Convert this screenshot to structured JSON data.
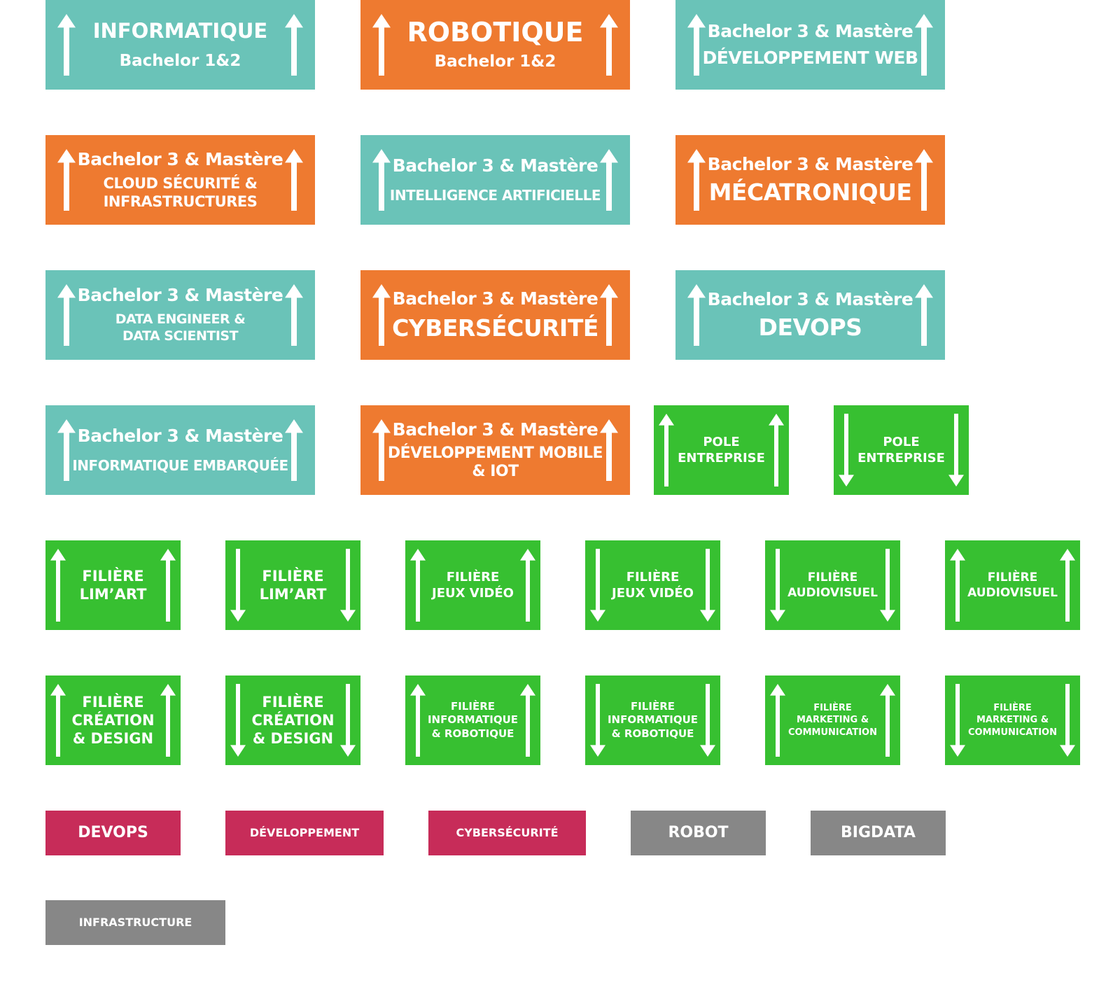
{
  "colors": {
    "teal": "#6ac3b8",
    "orange": "#ee7a30",
    "green": "#37c031",
    "crimson": "#c72c59",
    "grey": "#878787",
    "white": "#ffffff"
  },
  "icons": {
    "up": "arrow-up-icon",
    "down": "arrow-down-icon"
  },
  "signs": [
    {
      "color": "teal",
      "arrows": "up",
      "lines": [
        "INFORMATIQUE",
        "Bachelor 1&2"
      ]
    },
    {
      "color": "orange",
      "arrows": "up",
      "lines": [
        "ROBOTIQUE",
        "Bachelor 1&2"
      ]
    },
    {
      "color": "teal",
      "arrows": "up",
      "lines": [
        "Bachelor 3 & Mastère",
        "DÉVELOPPEMENT WEB"
      ]
    },
    {
      "color": "orange",
      "arrows": "up",
      "lines": [
        "Bachelor 3 & Mastère",
        "CLOUD SÉCURITÉ &",
        "INFRASTRUCTURES"
      ]
    },
    {
      "color": "teal",
      "arrows": "up",
      "lines": [
        "Bachelor 3 & Mastère",
        "INTELLIGENCE ARTIFICIELLE"
      ]
    },
    {
      "color": "orange",
      "arrows": "up",
      "lines": [
        "Bachelor 3 & Mastère",
        "MÉCATRONIQUE"
      ]
    },
    {
      "color": "teal",
      "arrows": "up",
      "lines": [
        "Bachelor 3 & Mastère",
        "DATA ENGINEER &",
        "DATA SCIENTIST"
      ]
    },
    {
      "color": "orange",
      "arrows": "up",
      "lines": [
        "Bachelor 3 & Mastère",
        "CYBERSÉCURITÉ"
      ]
    },
    {
      "color": "teal",
      "arrows": "up",
      "lines": [
        "Bachelor 3 & Mastère",
        "DEVOPS"
      ]
    },
    {
      "color": "teal",
      "arrows": "up",
      "lines": [
        "Bachelor 3 & Mastère",
        "INFORMATIQUE EMBARQUÉE"
      ]
    },
    {
      "color": "orange",
      "arrows": "up",
      "lines": [
        "Bachelor 3 & Mastère",
        "DÉVELOPPEMENT MOBILE",
        "& IOT"
      ]
    },
    {
      "color": "green",
      "arrows": "up",
      "lines": [
        "POLE",
        "ENTREPRISE"
      ]
    },
    {
      "color": "green",
      "arrows": "down",
      "lines": [
        "POLE",
        "ENTREPRISE"
      ]
    },
    {
      "color": "green",
      "arrows": "up",
      "lines": [
        "FILIÈRE",
        "LIM’ART"
      ]
    },
    {
      "color": "green",
      "arrows": "down",
      "lines": [
        "FILIÈRE",
        "LIM’ART"
      ]
    },
    {
      "color": "green",
      "arrows": "up",
      "lines": [
        "FILIÈRE",
        "JEUX VIDÉO"
      ]
    },
    {
      "color": "green",
      "arrows": "down",
      "lines": [
        "FILIÈRE",
        "JEUX VIDÉO"
      ]
    },
    {
      "color": "green",
      "arrows": "down",
      "lines": [
        "FILIÈRE",
        "AUDIOVISUEL"
      ]
    },
    {
      "color": "green",
      "arrows": "up",
      "lines": [
        "FILIÈRE",
        "AUDIOVISUEL"
      ]
    },
    {
      "color": "green",
      "arrows": "up",
      "lines": [
        "FILIÈRE",
        "CRÉATION",
        "& DESIGN"
      ]
    },
    {
      "color": "green",
      "arrows": "down",
      "lines": [
        "FILIÈRE",
        "CRÉATION",
        "& DESIGN"
      ]
    },
    {
      "color": "green",
      "arrows": "up",
      "lines": [
        "FILIÈRE",
        "INFORMATIQUE",
        "& ROBOTIQUE"
      ]
    },
    {
      "color": "green",
      "arrows": "down",
      "lines": [
        "FILIÈRE",
        "INFORMATIQUE",
        "& ROBOTIQUE"
      ]
    },
    {
      "color": "green",
      "arrows": "up",
      "lines": [
        "FILIÈRE",
        "MARKETING &",
        "COMMUNICATION"
      ]
    },
    {
      "color": "green",
      "arrows": "down",
      "lines": [
        "FILIÈRE",
        "MARKETING &",
        "COMMUNICATION"
      ]
    }
  ],
  "tags": [
    {
      "color": "crimson",
      "label": "DEVOPS"
    },
    {
      "color": "crimson",
      "label": "DÉVELOPPEMENT"
    },
    {
      "color": "crimson",
      "label": "CYBERSÉCURITÉ"
    },
    {
      "color": "grey",
      "label": "ROBOT"
    },
    {
      "color": "grey",
      "label": "BIGDATA"
    },
    {
      "color": "grey",
      "label": "INFRASTRUCTURE"
    }
  ]
}
